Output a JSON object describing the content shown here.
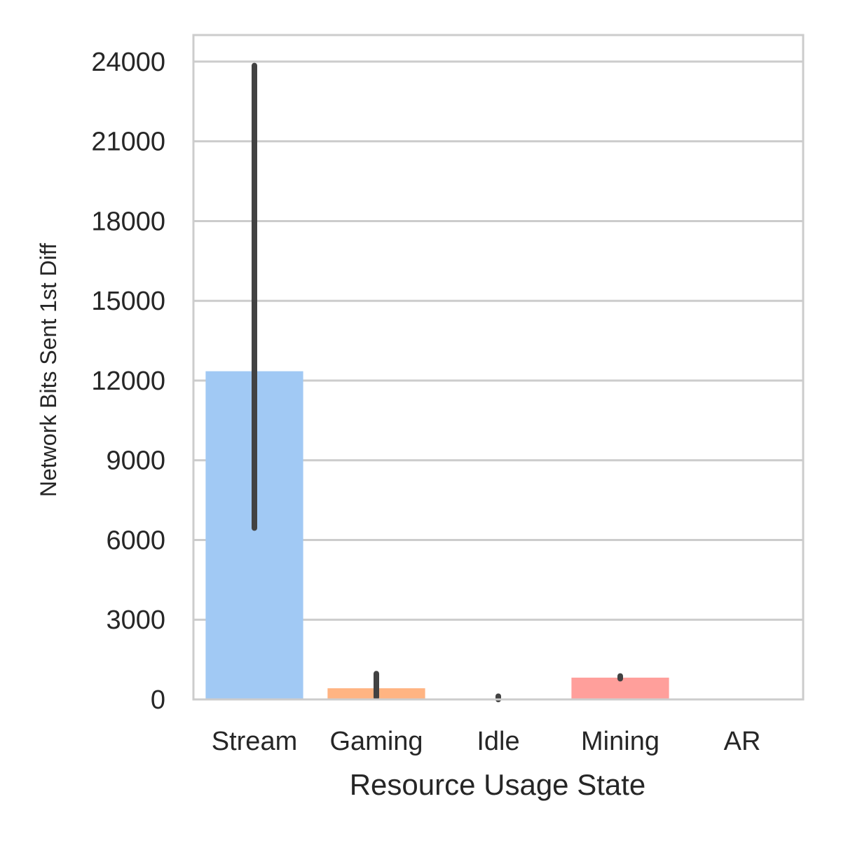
{
  "chart_data": {
    "type": "bar",
    "xlabel": "Resource Usage State",
    "ylabel": "Network Bits Sent 1st Diff",
    "categories": [
      "Stream",
      "Gaming",
      "Idle",
      "Mining",
      "AR"
    ],
    "values": [
      12350,
      420,
      15,
      820,
      0
    ],
    "error_bars": [
      [
        6450,
        23850
      ],
      [
        80,
        970
      ],
      [
        0,
        120
      ],
      [
        780,
        880
      ],
      [
        0,
        0
      ]
    ],
    "ylim": [
      0,
      25000
    ],
    "yticks": [
      0,
      3000,
      6000,
      9000,
      12000,
      15000,
      18000,
      21000,
      24000
    ],
    "grid": true,
    "legend": "none",
    "colors": [
      "#a1c9f4",
      "#ffb482",
      "#8de5a1",
      "#ff9f9b",
      "#d0bbff"
    ],
    "error_color": "#424242",
    "grid_color": "#cccccc"
  }
}
